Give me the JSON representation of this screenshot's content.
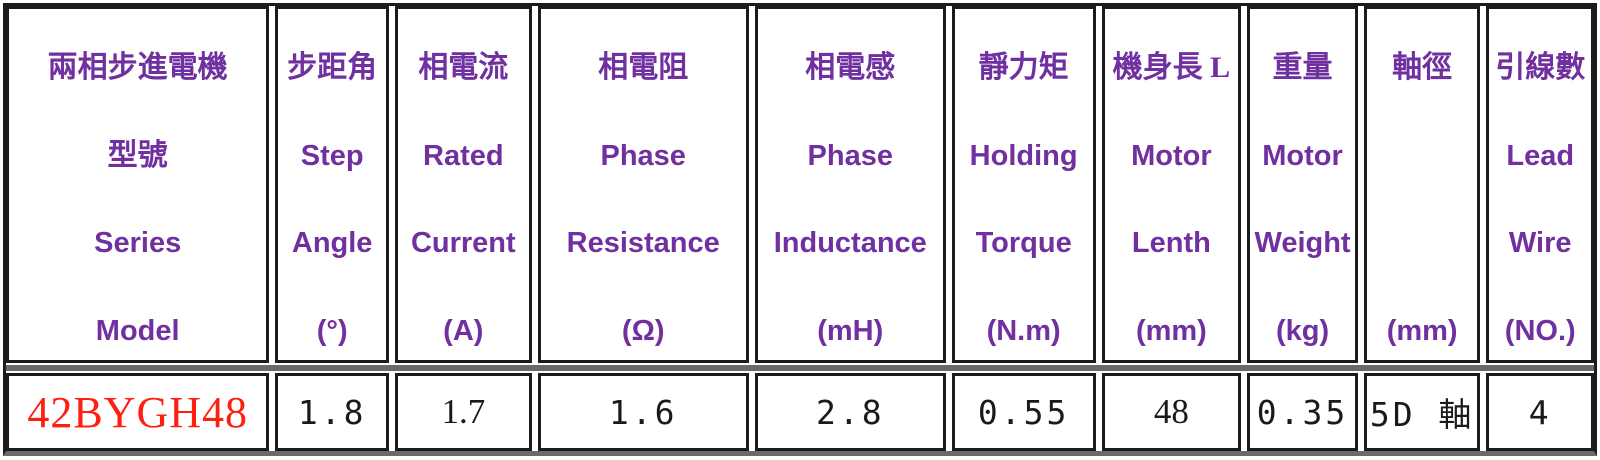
{
  "colors": {
    "header_text": "#7030a0",
    "model_text": "#ff1f0f",
    "value_text": "#1a1a1a",
    "border": "#1b1b1b",
    "divider_gray": "#6a6a6a",
    "background": "#ffffff"
  },
  "table": {
    "columns": [
      {
        "lines": [
          "兩相步進電機",
          "型號",
          "Series",
          "Model"
        ],
        "value": "42BYGH48"
      },
      {
        "lines": [
          "步距角",
          "Step",
          "Angle",
          "(°)"
        ],
        "value": "1.8"
      },
      {
        "lines": [
          "相電流",
          "Rated",
          "Current",
          "(A)"
        ],
        "value": "1.7"
      },
      {
        "lines": [
          "相電阻",
          "Phase",
          "Resistance",
          "(Ω)"
        ],
        "value": "1.6"
      },
      {
        "lines": [
          "相電感",
          "Phase",
          "Inductance",
          "(mH)"
        ],
        "value": "2.8"
      },
      {
        "lines": [
          "靜力矩",
          "Holding",
          "Torque",
          "(N.m)"
        ],
        "value": "0.55"
      },
      {
        "lines": [
          "機身長 L",
          "Motor",
          "Lenth",
          "(mm)"
        ],
        "value": "48"
      },
      {
        "lines": [
          "重量",
          "Motor",
          "Weight",
          "(kg)"
        ],
        "value": "0.35"
      },
      {
        "lines": [
          "軸徑",
          "",
          "",
          "(mm)"
        ],
        "value": "5D 軸"
      },
      {
        "lines": [
          "引線數",
          "Lead",
          "Wire",
          "(NO.)"
        ],
        "value": "4"
      }
    ]
  },
  "chart_data": {
    "type": "table",
    "columns": [
      "兩相步進電機 型號 Series Model",
      "步距角 Step Angle (°)",
      "相電流 Rated Current (A)",
      "相電阻 Phase Resistance (Ω)",
      "相電感 Phase Inductance (mH)",
      "靜力矩 Holding Torque (N.m)",
      "機身長 L Motor Lenth (mm)",
      "重量 Motor Weight (kg)",
      "軸徑 (mm)",
      "引線數 Lead Wire (NO.)"
    ],
    "rows": [
      [
        "42BYGH48",
        "1.8",
        "1.7",
        "1.6",
        "2.8",
        "0.55",
        "48",
        "0.35",
        "5D 軸",
        "4"
      ]
    ]
  }
}
